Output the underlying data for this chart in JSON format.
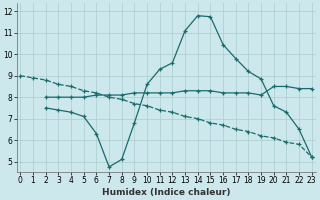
{
  "xlabel": "Humidex (Indice chaleur)",
  "bg_color": "#cce8ec",
  "grid_color": "#aacccc",
  "line_color": "#1a6b6b",
  "series": [
    {
      "x": [
        0,
        1,
        2,
        3,
        4,
        5,
        6,
        7,
        8,
        9,
        10,
        11,
        12,
        13,
        14,
        15,
        16,
        17,
        18,
        19,
        20,
        21,
        22,
        23
      ],
      "y": [
        9.0,
        8.9,
        8.8,
        8.6,
        8.5,
        8.3,
        8.2,
        8.0,
        7.9,
        7.7,
        7.6,
        7.4,
        7.3,
        7.1,
        7.0,
        6.8,
        6.7,
        6.5,
        6.4,
        6.2,
        6.1,
        5.9,
        5.8,
        5.2
      ],
      "linestyle": "--",
      "marker": "+"
    },
    {
      "x": [
        2,
        3,
        4,
        5,
        6,
        7,
        8,
        9,
        10,
        11,
        12,
        13,
        14,
        15,
        16,
        17,
        18,
        19,
        20,
        21,
        22,
        23
      ],
      "y": [
        8.0,
        8.0,
        8.0,
        8.0,
        8.1,
        8.1,
        8.1,
        8.2,
        8.2,
        8.2,
        8.2,
        8.3,
        8.3,
        8.3,
        8.2,
        8.2,
        8.2,
        8.1,
        8.5,
        8.5,
        8.4,
        8.4
      ],
      "linestyle": "-",
      "marker": "+"
    },
    {
      "x": [
        2,
        3,
        4,
        5,
        6,
        7,
        8,
        9,
        10,
        11,
        12,
        13,
        14,
        15,
        16,
        17,
        18,
        19,
        20,
        21,
        22,
        23
      ],
      "y": [
        7.5,
        7.4,
        7.3,
        7.1,
        6.3,
        4.75,
        5.1,
        6.8,
        8.6,
        9.3,
        9.6,
        11.1,
        11.8,
        11.75,
        10.45,
        9.8,
        9.2,
        8.85,
        7.6,
        7.3,
        6.5,
        5.2
      ],
      "linestyle": "-",
      "marker": "+"
    }
  ],
  "xlim": [
    -0.3,
    23.3
  ],
  "ylim": [
    4.5,
    12.4
  ],
  "yticks": [
    5,
    6,
    7,
    8,
    9,
    10,
    11,
    12
  ],
  "xticks": [
    0,
    1,
    2,
    3,
    4,
    5,
    6,
    7,
    8,
    9,
    10,
    11,
    12,
    13,
    14,
    15,
    16,
    17,
    18,
    19,
    20,
    21,
    22,
    23
  ],
  "tick_fontsize": 5.5,
  "xlabel_fontsize": 6.5
}
